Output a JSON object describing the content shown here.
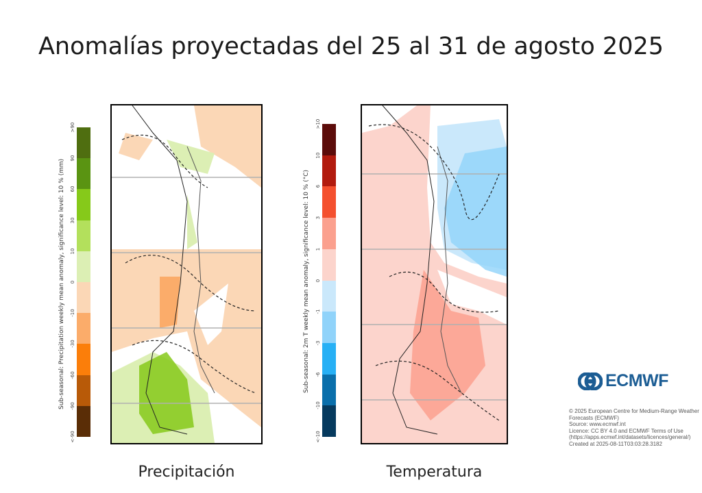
{
  "title": "Anomalías proyectadas del 25 al 31 de agosto 2025",
  "precipitation": {
    "caption": "Precipitación",
    "colorbar_label": "Sub-seasonal: Precipitation weekly mean anomaly, significance level: 10 % (mm)",
    "ticks": [
      ">90",
      "90",
      "60",
      "30",
      "10",
      "0",
      "-10",
      "-30",
      "-60",
      "-90",
      "<-90"
    ],
    "colors": [
      "#4f6e10",
      "#5a9412",
      "#86c91a",
      "#b3e05c",
      "#dcefb4",
      "#fbd7b6",
      "#fbac6a",
      "#fb7e0a",
      "#b85a08",
      "#5a2d06"
    ]
  },
  "temperature": {
    "caption": "Temperatura",
    "colorbar_label": "Sub-seasonal: 2m T weekly mean anomaly, significance level: 10 % (°C)",
    "ticks": [
      ">10",
      "10",
      "6",
      "3",
      "1",
      "0",
      "-1",
      "-3",
      "-6",
      "-10",
      "<-10"
    ],
    "colors": [
      "#5c0c0a",
      "#b21b0e",
      "#f4502e",
      "#fba08e",
      "#fcd4cc",
      "#cae8fb",
      "#90d3fa",
      "#27b0f5",
      "#0a6fab",
      "#063a5e"
    ]
  },
  "logo": {
    "text": "ECMWF",
    "color": "#1c5d94"
  },
  "credits": [
    "© 2025 European Centre for Medium-Range Weather Forecasts (ECMWF)",
    "Source: www.ecmwf.int",
    "Licence: CC BY 4.0 and ECMWF Terms of Use (https://apps.ecmwf.int/datasets/licences/general/)",
    "Created at 2025-08-11T03:03:28.3182"
  ]
}
